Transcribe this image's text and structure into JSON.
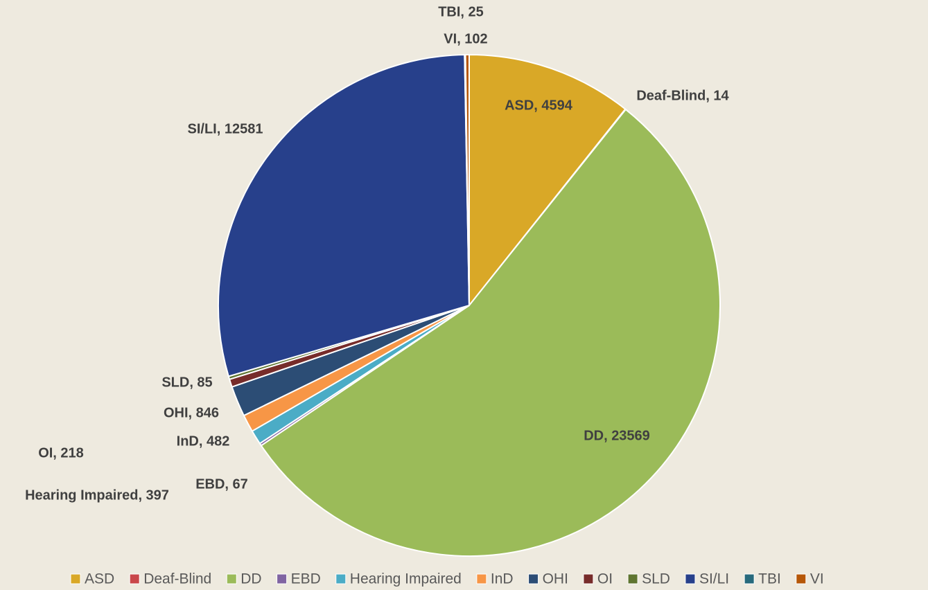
{
  "chart_data": {
    "type": "pie",
    "categories": [
      "ASD",
      "Deaf-Blind",
      "DD",
      "EBD",
      "Hearing Impaired",
      "InD",
      "OHI",
      "OI",
      "SLD",
      "SI/LI",
      "TBI",
      "VI"
    ],
    "values": [
      4594,
      14,
      23569,
      67,
      397,
      482,
      846,
      218,
      85,
      12581,
      25,
      102
    ],
    "value_labels": [
      "ASD, 4594",
      "Deaf-Blind, 14",
      "DD, 23569",
      "EBD, 67",
      "Hearing Impaired, 397",
      "InD, 482",
      "OHI, 846",
      "OI, 218",
      "SLD, 85",
      "SI/LI, 12581",
      "TBI, 25",
      "VI, 102"
    ],
    "colors": [
      "#d9a827",
      "#c9474a",
      "#9bbb59",
      "#8064a2",
      "#4bacc6",
      "#f79646",
      "#2c4d75",
      "#772c2a",
      "#5f7530",
      "#27408b",
      "#276a7c",
      "#b65708"
    ],
    "legend": "bottom"
  }
}
